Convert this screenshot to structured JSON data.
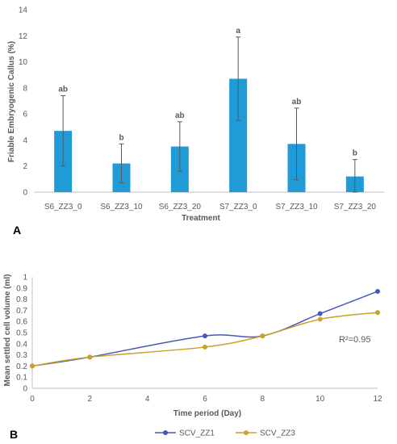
{
  "chart_data": [
    {
      "type": "bar",
      "panel_label": "A",
      "categories": [
        "S6_ZZ3_0",
        "S6_ZZ3_10",
        "S6_ZZ3_20",
        "S7_ZZ3_0",
        "S7_ZZ3_10",
        "S7_ZZ3_20"
      ],
      "values": [
        4.7,
        2.2,
        3.5,
        8.7,
        3.7,
        1.2
      ],
      "error": [
        2.7,
        1.5,
        1.9,
        3.2,
        2.75,
        1.3
      ],
      "significance": [
        "ab",
        "b",
        "ab",
        "a",
        "ab",
        "b"
      ],
      "xlabel": "Treatment",
      "ylabel": "Friable Embryogenic Callus (%)",
      "ylim": [
        0,
        14
      ],
      "yticks": [
        0,
        2,
        4,
        6,
        8,
        10,
        12,
        14
      ],
      "grid": false,
      "colors": {
        "bar": "#1f9bd7",
        "error": "#595959",
        "axis": "#bfbfbf"
      }
    },
    {
      "type": "line",
      "panel_label": "B",
      "x": [
        0,
        2,
        6,
        8,
        10,
        12
      ],
      "series": [
        {
          "name": "SCV_ZZ1",
          "values": [
            0.2,
            0.28,
            0.47,
            0.47,
            0.67,
            0.87
          ],
          "color": "#4659b4"
        },
        {
          "name": "SCV_ZZ3",
          "values": [
            0.2,
            0.28,
            0.37,
            0.47,
            0.62,
            0.68
          ],
          "color": "#c9a227"
        }
      ],
      "xlabel": "Time period (Day)",
      "ylabel": "Mean settled cell volume (ml)",
      "xlim": [
        0,
        12
      ],
      "ylim": [
        0,
        1
      ],
      "xticks": [
        0,
        2,
        4,
        6,
        8,
        10,
        12
      ],
      "yticks": [
        "0",
        "0.1",
        "0.2",
        "0.3",
        "0.4",
        "0.5",
        "0.6",
        "0.7",
        "0.8",
        "0.9",
        "1"
      ],
      "annotation": "R²=0.95",
      "legend_position": "bottom",
      "grid": false
    }
  ]
}
